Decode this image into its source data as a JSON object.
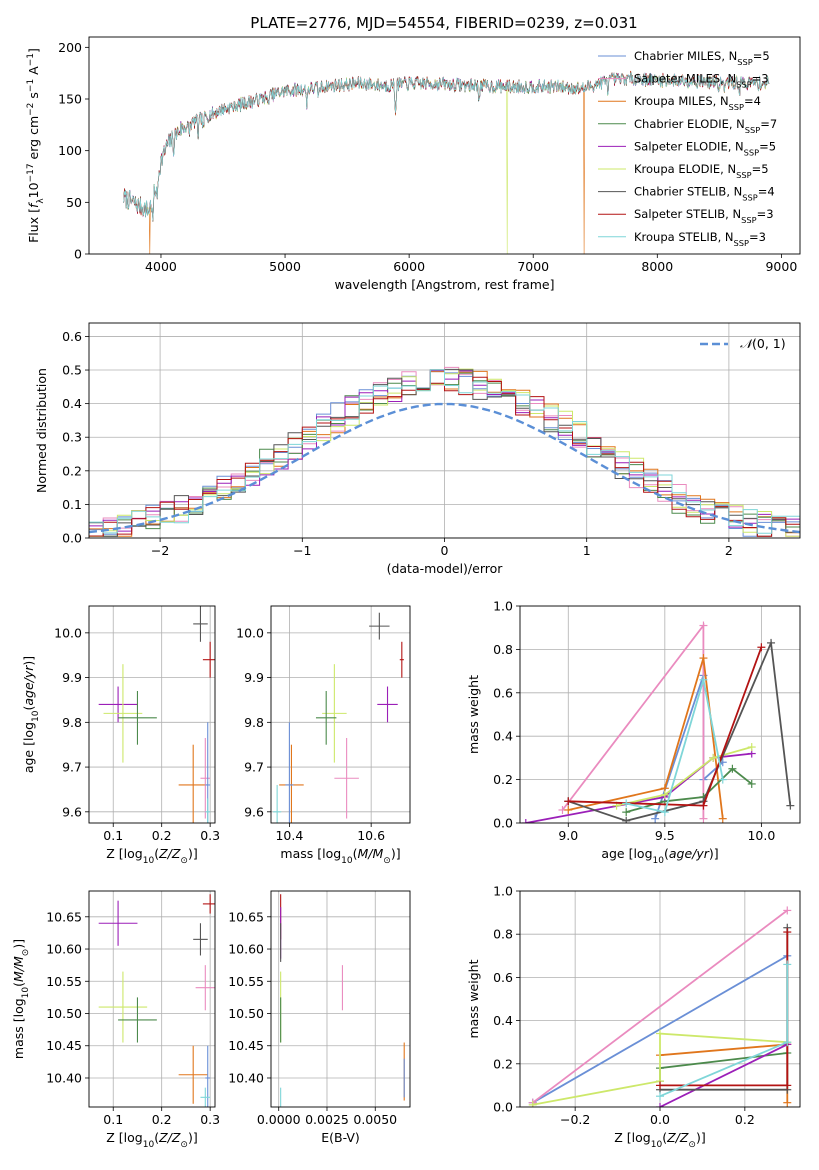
{
  "figure_title": "PLATE=2776, MJD=54554, FIBERID=0239, z=0.031",
  "colors": {
    "chabrier_miles": "#6a8fd6",
    "salpeter_miles": "#ea8bbf",
    "kroupa_miles": "#e0761c",
    "chabrier_elodie": "#4c8a4c",
    "salpeter_elodie": "#9b1fb8",
    "kroupa_elodie": "#cde86a",
    "chabrier_stelib": "#555555",
    "salpeter_stelib": "#b31313",
    "kroupa_stelib": "#7fd6d8",
    "normal_curve": "#5b8fd6",
    "grid": "#b0b0b0"
  },
  "chart_data": [
    {
      "id": "spectrum",
      "type": "line",
      "xlabel": "wavelength [Angstrom, rest frame]",
      "ylabel": "Flux [f_λ 10^-17 erg cm^-2 s^-1 A^-1]",
      "xlim": [
        3420,
        9150
      ],
      "ylim": [
        0,
        210
      ],
      "xticks": [
        4000,
        5000,
        6000,
        7000,
        8000,
        9000
      ],
      "yticks": [
        0,
        50,
        100,
        150,
        200
      ],
      "grid": false,
      "legend_position": "top-right",
      "legend": [
        "Chabrier MILES, N_SSP=5",
        "Salpeter MILES, N_SSP=3",
        "Kroupa MILES, N_SSP=4",
        "Chabrier ELODIE, N_SSP=7",
        "Salpeter ELODIE, N_SSP=5",
        "Kroupa ELODIE, N_SSP=5",
        "Chabrier STELIB, N_SSP=4",
        "Salpeter STELIB, N_SSP=3",
        "Kroupa STELIB, N_SSP=3"
      ],
      "continuum_knots": [
        [
          3700,
          55
        ],
        [
          3800,
          48
        ],
        [
          3900,
          42
        ],
        [
          3950,
          60
        ],
        [
          4000,
          90
        ],
        [
          4050,
          105
        ],
        [
          4150,
          120
        ],
        [
          4300,
          130
        ],
        [
          4500,
          140
        ],
        [
          4800,
          150
        ],
        [
          5000,
          158
        ],
        [
          5200,
          160
        ],
        [
          5400,
          163
        ],
        [
          5600,
          165
        ],
        [
          5800,
          163
        ],
        [
          6000,
          165
        ],
        [
          6200,
          165
        ],
        [
          6500,
          163
        ],
        [
          6800,
          162
        ],
        [
          7000,
          162
        ],
        [
          7200,
          162
        ],
        [
          7400,
          160
        ],
        [
          7600,
          168
        ],
        [
          7800,
          170
        ],
        [
          8000,
          168
        ],
        [
          8200,
          168
        ],
        [
          8500,
          166
        ],
        [
          8900,
          165
        ]
      ],
      "absorption_lines": [
        [
          3934,
          25
        ],
        [
          3969,
          20
        ],
        [
          4101,
          12
        ],
        [
          4227,
          10
        ],
        [
          4300,
          15
        ],
        [
          4340,
          12
        ],
        [
          4861,
          10
        ],
        [
          5175,
          14
        ],
        [
          5270,
          8
        ],
        [
          5890,
          30
        ],
        [
          6563,
          12
        ],
        [
          7600,
          8
        ],
        [
          8498,
          8
        ],
        [
          8542,
          10
        ],
        [
          8662,
          8
        ]
      ],
      "drops": [
        {
          "series": "kroupa_miles",
          "x": 3910
        },
        {
          "series": "kroupa_elodie",
          "x": 6790
        },
        {
          "series": "kroupa_miles",
          "x": 7410
        }
      ]
    },
    {
      "id": "residual-histogram",
      "type": "histogram",
      "xlabel": "(data-model)/error",
      "ylabel": "Normed distribution",
      "xlim": [
        -2.5,
        2.5
      ],
      "ylim": [
        0,
        0.64
      ],
      "xticks": [
        -2,
        -1,
        0,
        1,
        2
      ],
      "yticks": [
        0.0,
        0.1,
        0.2,
        0.3,
        0.4,
        0.5,
        0.6
      ],
      "grid": true,
      "legend_position": "top-right",
      "legend": [
        "N(0,1)"
      ],
      "bin_width": 0.1
    },
    {
      "id": "age-vs-z",
      "type": "scatter",
      "xlabel": "Z [log10(Z/Zsun)]",
      "ylabel": "age [log10(age/yr)]",
      "xlim": [
        0.05,
        0.31
      ],
      "ylim": [
        9.575,
        10.06
      ],
      "xticks": [
        0.1,
        0.2,
        0.3
      ],
      "yticks": [
        9.6,
        9.7,
        9.8,
        9.9,
        10.0
      ],
      "grid": true,
      "points": [
        {
          "series": "salpeter_elodie",
          "x": 0.11,
          "y": 9.84,
          "xerr": 0.04,
          "yerr": 0.04
        },
        {
          "series": "kroupa_elodie",
          "x": 0.12,
          "y": 9.82,
          "xerr": 0.04,
          "yerr": 0.11
        },
        {
          "series": "chabrier_elodie",
          "x": 0.15,
          "y": 9.81,
          "xerr": 0.04,
          "yerr": 0.06
        },
        {
          "series": "chabrier_stelib",
          "x": 0.28,
          "y": 10.02,
          "xerr": 0.015,
          "yerr": 0.04
        },
        {
          "series": "salpeter_stelib",
          "x": 0.3,
          "y": 9.94,
          "xerr": 0.015,
          "yerr": 0.04
        },
        {
          "series": "kroupa_miles",
          "x": 0.265,
          "y": 9.66,
          "xerr": 0.03,
          "yerr": 0.09
        },
        {
          "series": "salpeter_miles",
          "x": 0.29,
          "y": 9.675,
          "xerr": 0.01,
          "yerr": 0.09
        },
        {
          "series": "chabrier_miles",
          "x": 0.295,
          "y": 9.66,
          "xerr": 0.005,
          "yerr": 0.14
        },
        {
          "series": "kroupa_stelib",
          "x": 0.295,
          "y": 9.6,
          "xerr": 0.005,
          "yerr": 0.03
        }
      ]
    },
    {
      "id": "age-vs-mass",
      "type": "scatter",
      "xlabel": "mass [log10(M/Msun)]",
      "ylabel": "",
      "xlim": [
        10.355,
        10.695
      ],
      "ylim": [
        9.575,
        10.06
      ],
      "xticks": [
        10.4,
        10.6
      ],
      "yticks": [
        9.6,
        9.7,
        9.8,
        9.9,
        10.0
      ],
      "grid": true,
      "points": [
        {
          "series": "chabrier_stelib",
          "x": 10.62,
          "y": 10.015,
          "xerr": 0.025,
          "yerr": 0.03
        },
        {
          "series": "salpeter_stelib",
          "x": 10.675,
          "y": 9.94,
          "xerr": 0.005,
          "yerr": 0.04
        },
        {
          "series": "salpeter_elodie",
          "x": 10.64,
          "y": 9.84,
          "xerr": 0.025,
          "yerr": 0.04
        },
        {
          "series": "kroupa_elodie",
          "x": 10.51,
          "y": 9.82,
          "xerr": 0.03,
          "yerr": 0.11
        },
        {
          "series": "chabrier_elodie",
          "x": 10.49,
          "y": 9.81,
          "xerr": 0.025,
          "yerr": 0.06
        },
        {
          "series": "salpeter_miles",
          "x": 10.54,
          "y": 9.675,
          "xerr": 0.03,
          "yerr": 0.09
        },
        {
          "series": "kroupa_miles",
          "x": 10.405,
          "y": 9.66,
          "xerr": 0.03,
          "yerr": 0.09
        },
        {
          "series": "chabrier_miles",
          "x": 10.4,
          "y": 9.66,
          "xerr": 0.01,
          "yerr": 0.14
        },
        {
          "series": "kroupa_stelib",
          "x": 10.37,
          "y": 9.6,
          "xerr": 0.01,
          "yerr": 0.06
        }
      ]
    },
    {
      "id": "mass-weight-vs-age",
      "type": "line",
      "xlabel": "age [log10(age/yr)]",
      "ylabel": "mass weight",
      "xlim": [
        8.75,
        10.2
      ],
      "ylim": [
        0,
        1
      ],
      "xticks": [
        9.0,
        9.5,
        10.0
      ],
      "yticks": [
        0.0,
        0.2,
        0.4,
        0.6,
        0.8,
        1.0
      ],
      "grid": true,
      "series": [
        {
          "color_key": "chabrier_miles",
          "x": [
            9.45,
            9.7,
            9.7,
            9.8
          ],
          "y": [
            0.02,
            0.68,
            0.2,
            0.28
          ]
        },
        {
          "color_key": "salpeter_miles",
          "x": [
            8.97,
            9.7,
            9.7
          ],
          "y": [
            0.06,
            0.91,
            0.02
          ]
        },
        {
          "color_key": "kroupa_miles",
          "x": [
            9.0,
            9.5,
            9.7,
            9.8
          ],
          "y": [
            0.06,
            0.16,
            0.76,
            0.02
          ]
        },
        {
          "color_key": "chabrier_elodie",
          "x": [
            9.3,
            9.5,
            9.7,
            9.85,
            9.95
          ],
          "y": [
            0.05,
            0.1,
            0.12,
            0.25,
            0.18
          ]
        },
        {
          "color_key": "salpeter_elodie",
          "x": [
            8.78,
            9.5,
            9.75,
            9.95
          ],
          "y": [
            0.0,
            0.12,
            0.3,
            0.32
          ]
        },
        {
          "color_key": "kroupa_elodie",
          "x": [
            9.25,
            9.5,
            9.75,
            9.95
          ],
          "y": [
            0.08,
            0.13,
            0.3,
            0.35
          ]
        },
        {
          "color_key": "chabrier_stelib",
          "x": [
            9.0,
            9.3,
            9.7,
            10.05,
            10.15
          ],
          "y": [
            0.1,
            0.01,
            0.1,
            0.83,
            0.08
          ]
        },
        {
          "color_key": "salpeter_stelib",
          "x": [
            9.0,
            9.7,
            10.0
          ],
          "y": [
            0.1,
            0.08,
            0.81
          ]
        },
        {
          "color_key": "kroupa_stelib",
          "x": [
            9.3,
            9.5,
            9.7,
            9.8
          ],
          "y": [
            0.09,
            0.05,
            0.66,
            0.2
          ]
        }
      ]
    },
    {
      "id": "mass-vs-z",
      "type": "scatter",
      "xlabel": "Z [log10(Z/Zsun)]",
      "ylabel": "mass [log10(M/Msun)]",
      "xlim": [
        0.05,
        0.31
      ],
      "ylim": [
        10.355,
        10.69
      ],
      "xticks": [
        0.1,
        0.2,
        0.3
      ],
      "yticks": [
        10.4,
        10.45,
        10.5,
        10.55,
        10.6,
        10.65
      ],
      "grid": true,
      "points": [
        {
          "series": "salpeter_elodie",
          "x": 0.11,
          "y": 10.64,
          "xerr": 0.04,
          "yerr": 0.035
        },
        {
          "series": "kroupa_elodie",
          "x": 0.12,
          "y": 10.51,
          "xerr": 0.05,
          "yerr": 0.055
        },
        {
          "series": "chabrier_elodie",
          "x": 0.15,
          "y": 10.49,
          "xerr": 0.04,
          "yerr": 0.035
        },
        {
          "series": "salpeter_stelib",
          "x": 0.3,
          "y": 10.67,
          "xerr": 0.015,
          "yerr": 0.015
        },
        {
          "series": "chabrier_stelib",
          "x": 0.28,
          "y": 10.615,
          "xerr": 0.015,
          "yerr": 0.025
        },
        {
          "series": "salpeter_miles",
          "x": 0.29,
          "y": 10.54,
          "xerr": 0.02,
          "yerr": 0.035
        },
        {
          "series": "kroupa_miles",
          "x": 0.265,
          "y": 10.405,
          "xerr": 0.03,
          "yerr": 0.045
        },
        {
          "series": "chabrier_miles",
          "x": 0.295,
          "y": 10.4,
          "xerr": 0.005,
          "yerr": 0.05
        },
        {
          "series": "kroupa_stelib",
          "x": 0.29,
          "y": 10.37,
          "xerr": 0.01,
          "yerr": 0.015
        }
      ]
    },
    {
      "id": "mass-vs-ebv",
      "type": "scatter",
      "xlabel": "E(B-V)",
      "ylabel": "",
      "xlim": [
        -0.0004,
        0.0068
      ],
      "ylim": [
        10.355,
        10.69
      ],
      "xticks": [
        0.0,
        0.0025,
        0.005
      ],
      "xtick_labels": [
        "0.0000",
        "0.0025",
        "0.0050"
      ],
      "yticks": [
        10.4,
        10.45,
        10.5,
        10.55,
        10.6,
        10.65
      ],
      "grid": true,
      "points": [
        {
          "series": "salpeter_stelib",
          "x": 0.0001,
          "y": 10.65,
          "xerr": 0,
          "yerr": 0.035
        },
        {
          "series": "salpeter_elodie",
          "x": 0.0001,
          "y": 10.625,
          "xerr": 0,
          "yerr": 0.04
        },
        {
          "series": "chabrier_stelib",
          "x": 0.0001,
          "y": 10.61,
          "xerr": 0,
          "yerr": 0.03
        },
        {
          "series": "kroupa_elodie",
          "x": 0.0001,
          "y": 10.51,
          "xerr": 0,
          "yerr": 0.055
        },
        {
          "series": "chabrier_elodie",
          "x": 0.0001,
          "y": 10.49,
          "xerr": 0,
          "yerr": 0.035
        },
        {
          "series": "kroupa_stelib",
          "x": 0.0001,
          "y": 10.37,
          "xerr": 0,
          "yerr": 0.015
        },
        {
          "series": "salpeter_miles",
          "x": 0.0033,
          "y": 10.54,
          "xerr": 0,
          "yerr": 0.035
        },
        {
          "series": "kroupa_miles",
          "x": 0.0065,
          "y": 10.41,
          "xerr": 0,
          "yerr": 0.045
        },
        {
          "series": "chabrier_miles",
          "x": 0.0065,
          "y": 10.4,
          "xerr": 0,
          "yerr": 0.03
        }
      ]
    },
    {
      "id": "mass-weight-vs-z",
      "type": "line",
      "xlabel": "Z [log10(Z/Zsun)]",
      "ylabel": "mass weight",
      "xlim": [
        -0.33,
        0.33
      ],
      "ylim": [
        0,
        1
      ],
      "xticks": [
        -0.2,
        0.0,
        0.2
      ],
      "yticks": [
        0.0,
        0.2,
        0.4,
        0.6,
        0.8,
        1.0
      ],
      "grid": true,
      "series": [
        {
          "color_key": "chabrier_miles",
          "x": [
            -0.3,
            0.3
          ],
          "y": [
            0.02,
            0.7
          ]
        },
        {
          "color_key": "salpeter_miles",
          "x": [
            -0.3,
            0.3
          ],
          "y": [
            0.02,
            0.91
          ]
        },
        {
          "color_key": "kroupa_miles",
          "x": [
            0.0,
            0.3,
            0.3
          ],
          "y": [
            0.24,
            0.29,
            0.02
          ]
        },
        {
          "color_key": "chabrier_elodie",
          "x": [
            0.0,
            0.0,
            0.3
          ],
          "y": [
            0.12,
            0.18,
            0.25
          ]
        },
        {
          "color_key": "salpeter_elodie",
          "x": [
            0.0,
            0.3
          ],
          "y": [
            0.0,
            0.29
          ]
        },
        {
          "color_key": "kroupa_elodie",
          "x": [
            -0.3,
            0.0,
            0.0,
            0.3
          ],
          "y": [
            0.01,
            0.12,
            0.34,
            0.3
          ]
        },
        {
          "color_key": "chabrier_stelib",
          "x": [
            0.0,
            0.3,
            0.3
          ],
          "y": [
            0.08,
            0.08,
            0.83
          ]
        },
        {
          "color_key": "salpeter_stelib",
          "x": [
            0.0,
            0.3,
            0.3
          ],
          "y": [
            0.1,
            0.1,
            0.81
          ]
        },
        {
          "color_key": "kroupa_stelib",
          "x": [
            0.0,
            0.3,
            0.3
          ],
          "y": [
            0.05,
            0.3,
            0.66
          ]
        }
      ]
    }
  ]
}
